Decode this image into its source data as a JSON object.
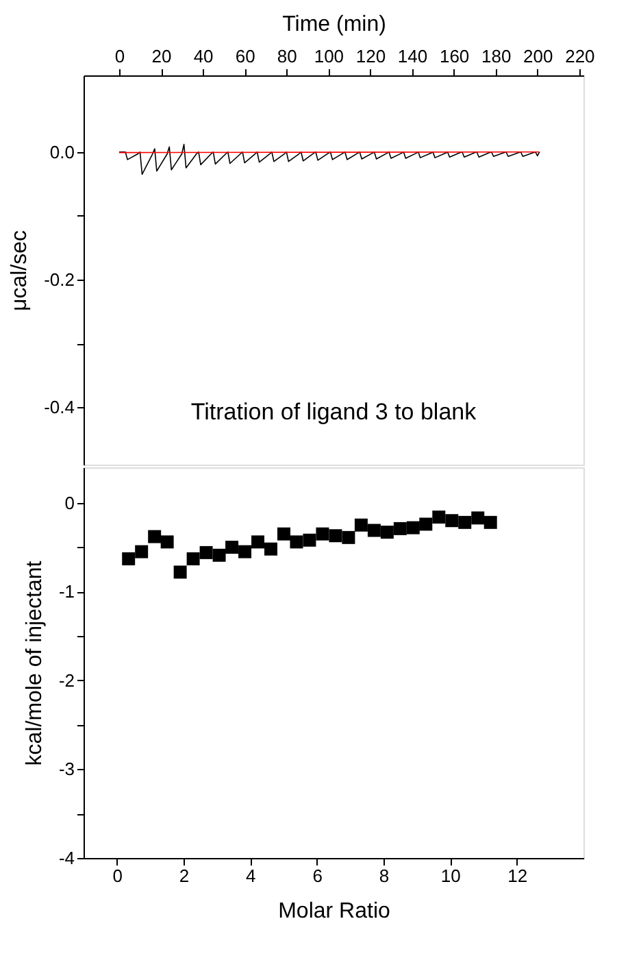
{
  "chart_data": [
    {
      "type": "line",
      "xlabel": "Time (min)",
      "ylabel": "μcal/sec",
      "xlim": [
        -17,
        222
      ],
      "xticks": [
        0,
        20,
        40,
        60,
        80,
        100,
        120,
        140,
        160,
        180,
        200,
        220
      ],
      "ylim": [
        -0.49,
        0.12
      ],
      "yticks": [
        {
          "value": 0,
          "label": "0.0"
        },
        {
          "value": -0.1,
          "label": null
        },
        {
          "value": -0.2,
          "label": "-0.2"
        },
        {
          "value": -0.3,
          "label": null
        },
        {
          "value": -0.4,
          "label": "-0.4"
        }
      ],
      "grid": false,
      "legend": false,
      "marker": "none",
      "line_style": "solid",
      "annotations": [
        "Titration of ligand 3 to blank"
      ],
      "series": [
        {
          "color": "#000000",
          "x": [
            0,
            3,
            4,
            9,
            10,
            11,
            16,
            17,
            18,
            23,
            24,
            25,
            30,
            31,
            32,
            37,
            38,
            39,
            44,
            45,
            46,
            51,
            52,
            53,
            58,
            59,
            60,
            65,
            66,
            67,
            72,
            73,
            74,
            79,
            80,
            81,
            86,
            87,
            88,
            93,
            94,
            95,
            100,
            101,
            102,
            107,
            108,
            109,
            114,
            115,
            116,
            121,
            122,
            123,
            128,
            129,
            130,
            135,
            136,
            137,
            142,
            143,
            144,
            149,
            150,
            151,
            156,
            157,
            158,
            163,
            164,
            165,
            170,
            171,
            172,
            177,
            178,
            179,
            184,
            185,
            186,
            191,
            192,
            193,
            198,
            199,
            200,
            201
          ],
          "values": [
            0,
            0,
            -0.012,
            -0.003,
            0,
            -0.035,
            -0.003,
            0.005,
            -0.03,
            -0.003,
            0.008,
            -0.028,
            -0.003,
            0.012,
            -0.025,
            -0.003,
            0,
            -0.02,
            -0.003,
            0,
            -0.019,
            -0.003,
            0,
            -0.018,
            -0.003,
            0,
            -0.017,
            -0.003,
            0,
            -0.016,
            -0.003,
            0,
            -0.015,
            -0.003,
            0,
            -0.015,
            -0.003,
            0,
            -0.014,
            -0.002,
            0,
            -0.013,
            -0.002,
            0,
            -0.012,
            -0.002,
            0,
            -0.012,
            -0.002,
            0,
            -0.011,
            -0.002,
            0,
            -0.011,
            -0.002,
            0,
            -0.01,
            -0.002,
            0,
            -0.01,
            -0.002,
            0,
            -0.009,
            -0.002,
            0,
            -0.009,
            -0.002,
            0,
            -0.008,
            -0.001,
            0,
            -0.008,
            -0.001,
            0,
            -0.008,
            -0.001,
            0,
            -0.007,
            -0.001,
            0,
            -0.007,
            -0.001,
            0,
            -0.007,
            -0.001,
            0,
            -0.006,
            0
          ]
        },
        {
          "color": "#ff0000",
          "x": [
            0,
            201
          ],
          "values": [
            -0.001,
            0
          ]
        }
      ]
    },
    {
      "type": "scatter",
      "xlabel": "Molar Ratio",
      "ylabel": "kcal/mole of injectant",
      "xlim": [
        -1,
        14
      ],
      "xticks": [
        0,
        2,
        4,
        6,
        8,
        10,
        12
      ],
      "ylim": [
        -4,
        0.4
      ],
      "yticks": [
        0,
        {
          "value": -0.5,
          "label": null
        },
        -1,
        {
          "value": -1.5,
          "label": null
        },
        -2,
        {
          "value": -2.5,
          "label": null
        },
        -3,
        {
          "value": -3.5,
          "label": null
        },
        -4
      ],
      "grid": false,
      "legend": false,
      "marker": "square",
      "x": [
        0.35,
        0.74,
        1.13,
        1.51,
        1.9,
        2.29,
        2.68,
        3.07,
        3.45,
        3.84,
        4.23,
        4.62,
        5.01,
        5.39,
        5.78,
        6.17,
        6.56,
        6.95,
        7.33,
        7.72,
        8.11,
        8.5,
        8.89,
        9.27,
        9.66,
        10.05,
        10.44,
        10.83,
        11.21
      ],
      "series": [
        {
          "color": "#000000",
          "values": [
            -0.63,
            -0.55,
            -0.38,
            -0.44,
            -0.78,
            -0.63,
            -0.56,
            -0.59,
            -0.5,
            -0.55,
            -0.44,
            -0.52,
            -0.35,
            -0.44,
            -0.42,
            -0.35,
            -0.37,
            -0.39,
            -0.25,
            -0.31,
            -0.33,
            -0.29,
            -0.28,
            -0.24,
            -0.16,
            -0.2,
            -0.22,
            -0.17,
            -0.22
          ]
        }
      ]
    }
  ]
}
